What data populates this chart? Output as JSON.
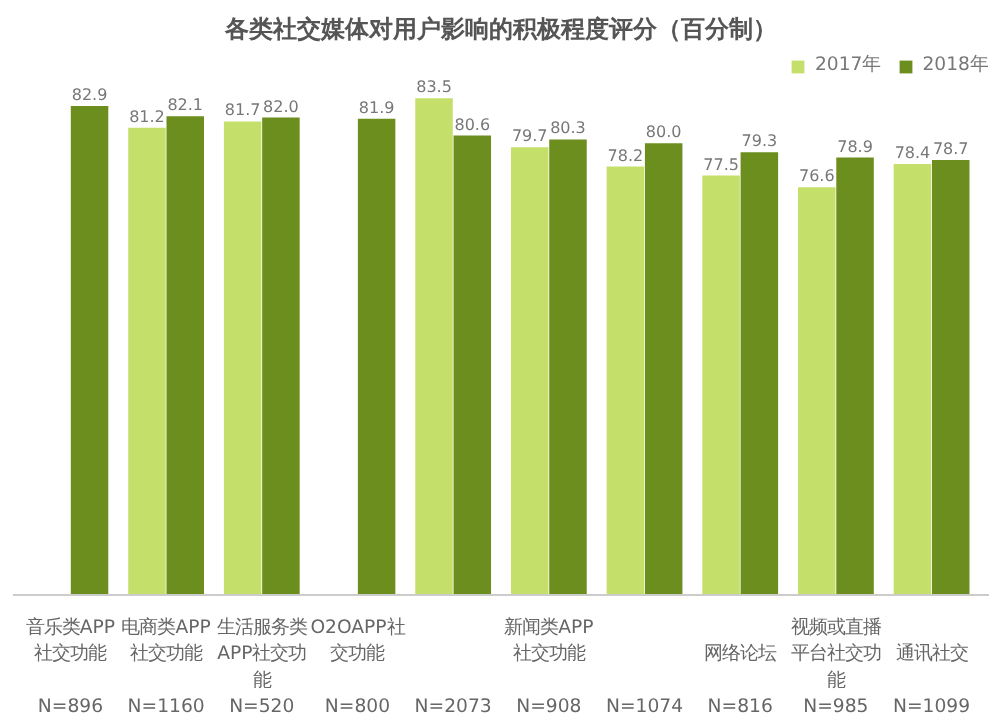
{
  "chart_data": {
    "type": "bar",
    "title": "各类社交媒体对用户影响的积极程度评分（百分制）",
    "categories": [
      "音乐类APP社交功能\nN=896",
      "电商类APP社交功能\nN=1160",
      "生活服务类APP社交功能\nN=520",
      "O2OAPP社交功能\nN=800",
      "\nN=2073",
      "新闻类APP社交功能\nN=908",
      "\nN=1074",
      "网络论坛\nN=816",
      "视频或直播平台社交功能\nN=985",
      "通讯社交\nN=1099"
    ],
    "series": [
      {
        "name": "2017年",
        "color": "#c5e06a",
        "values": [
          null,
          81.2,
          81.7,
          null,
          83.5,
          79.7,
          78.2,
          77.5,
          76.6,
          78.4
        ],
        "value_labels": [
          null,
          "81.2",
          "81.7",
          null,
          "83.5",
          "79.7",
          "78.2",
          "77.5",
          "76.6",
          "78.4"
        ]
      },
      {
        "name": "2018年",
        "color": "#6b8e1e",
        "values": [
          82.9,
          82.1,
          82.0,
          81.9,
          80.6,
          80.3,
          80.0,
          79.3,
          78.9,
          78.7
        ],
        "value_labels": [
          "82.9",
          "82.1",
          "82.0",
          "81.9",
          "80.6",
          "80.3",
          "80.0",
          "79.3",
          "78.9",
          "78.7"
        ]
      }
    ],
    "ylim": [
      45,
      87
    ],
    "tick_labels": "x",
    "legend": "top right"
  }
}
